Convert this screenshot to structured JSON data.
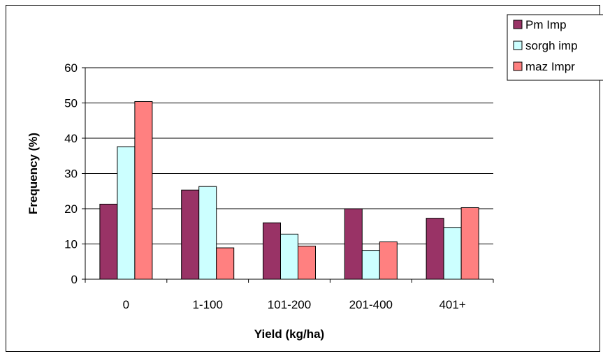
{
  "chart_data": {
    "type": "bar",
    "title": "",
    "xlabel": "Yield (kg/ha)",
    "ylabel": "Frequency (%)",
    "categories": [
      "0",
      "1-100",
      "101-200",
      "201-400",
      "401+"
    ],
    "ylim": [
      0,
      60
    ],
    "yticks": [
      0,
      10,
      20,
      30,
      40,
      50,
      60
    ],
    "grid": "horizontal major gridlines",
    "legend_position": "top-right",
    "series": [
      {
        "name": "Pm Imp",
        "color": "#993366",
        "values": [
          21.3,
          25.3,
          16.0,
          20.0,
          17.3
        ]
      },
      {
        "name": "sorgh imp",
        "color": "#ccffff",
        "values": [
          37.6,
          26.3,
          12.8,
          8.2,
          14.7
        ]
      },
      {
        "name": "maz Impr",
        "color": "#ff8080",
        "values": [
          50.4,
          8.9,
          9.4,
          10.6,
          20.3
        ]
      }
    ]
  }
}
